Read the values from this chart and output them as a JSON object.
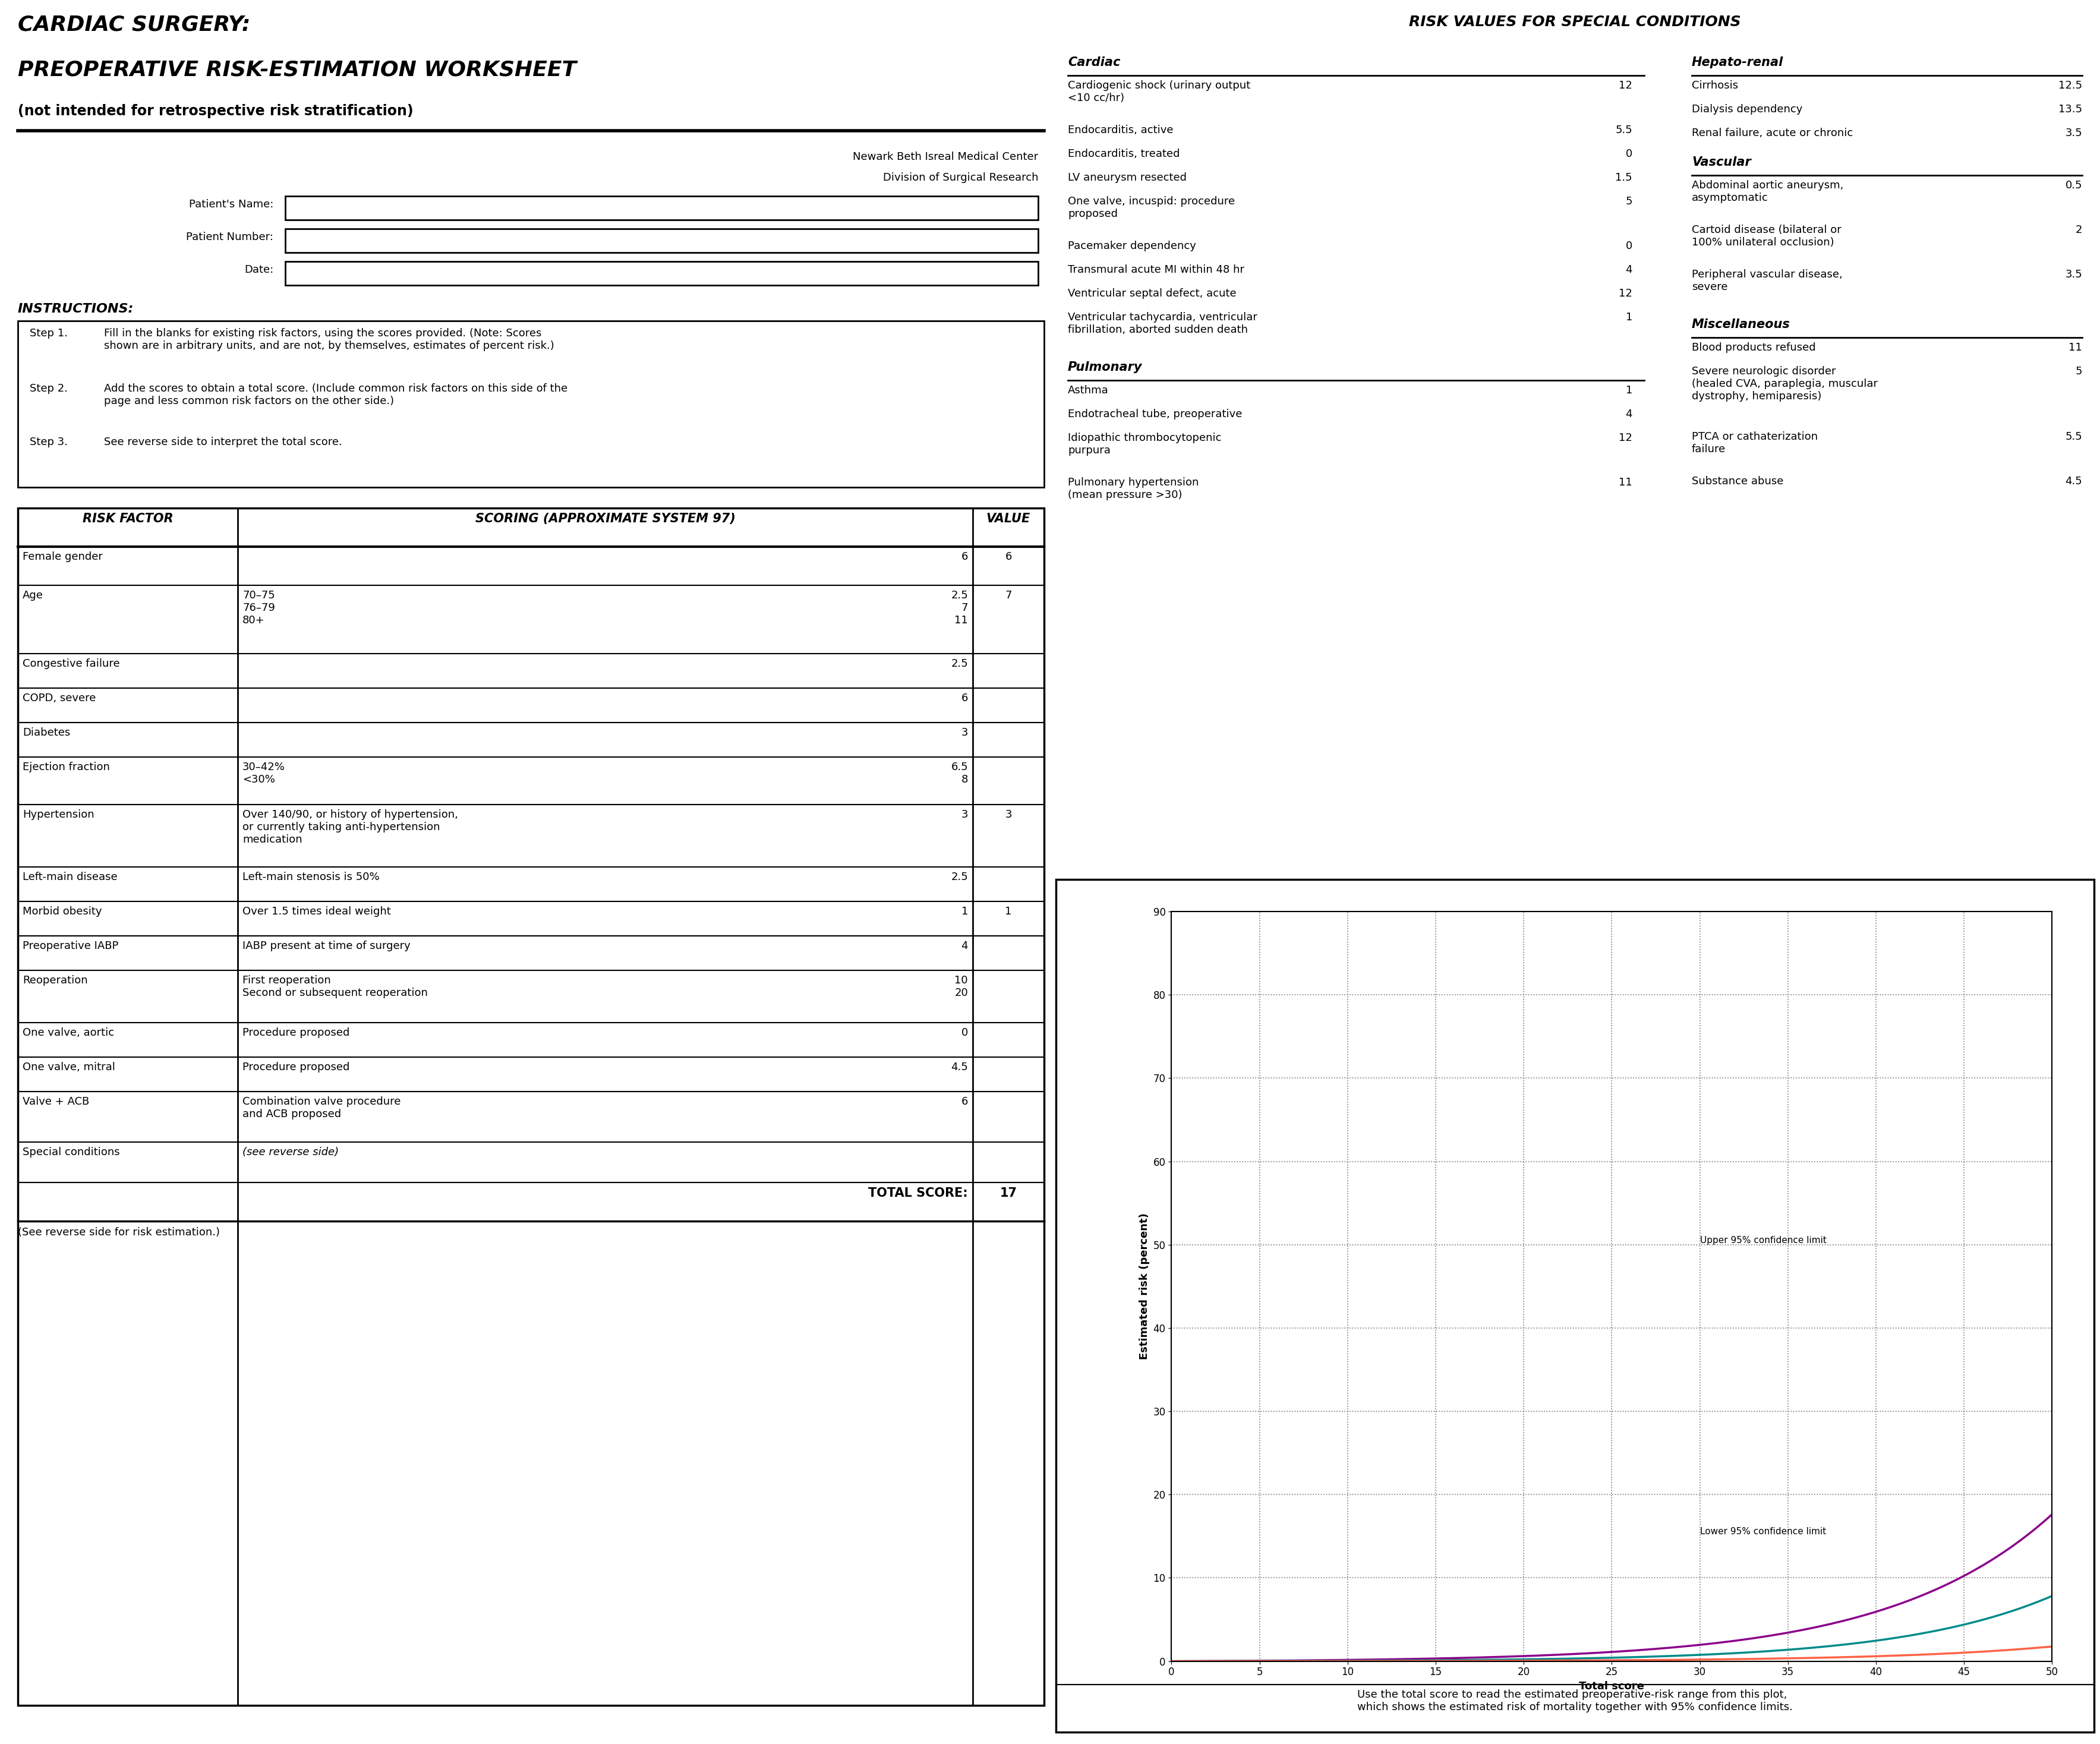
{
  "title_line1": "CARDIAC SURGERY:",
  "title_line2": "PREOPERATIVE RISK-ESTIMATION WORKSHEET",
  "title_line3": "(not intended for retrospective risk stratification)",
  "right_title": "RISK VALUES FOR SPECIAL CONDITIONS",
  "institution1": "Newark Beth Isreal Medical Center",
  "institution2": "Division of Surgical Research",
  "patient_labels": [
    "Patient's Name:",
    "Patient Number:",
    "Date:"
  ],
  "instructions_title": "INSTRUCTIONS:",
  "step1_label": "Step 1.",
  "step1_text": "Fill in the blanks for existing risk factors, using the scores provided. (Note: Scores\nshown are in arbitrary units, and are not, by themselves, estimates of percent risk.)",
  "step2_label": "Step 2.",
  "step2_text": "Add the scores to obtain a total score. (Include common risk factors on this side of the\npage and less common risk factors on the other side.)",
  "step3_label": "Step 3.",
  "step3_text": "See reverse side to interpret the total score.",
  "table_headers": [
    "RISK FACTOR",
    "SCORING (APPROXIMATE SYSTEM 97)",
    "VALUE"
  ],
  "table_rows": [
    {
      "factor": "Female gender",
      "scoring": "",
      "score_values": "6",
      "value": "6"
    },
    {
      "factor": "Age",
      "scoring": "70–75\n76–79\n80+",
      "score_values": "2.5\n7\n11",
      "value": "7"
    },
    {
      "factor": "Congestive failure",
      "scoring": "",
      "score_values": "2.5",
      "value": ""
    },
    {
      "factor": "COPD, severe",
      "scoring": "",
      "score_values": "6",
      "value": ""
    },
    {
      "factor": "Diabetes",
      "scoring": "",
      "score_values": "3",
      "value": ""
    },
    {
      "factor": "Ejection fraction",
      "scoring": "30–42%\n<30%",
      "score_values": "6.5\n8",
      "value": ""
    },
    {
      "factor": "Hypertension",
      "scoring": "Over 140/90, or history of hypertension,\nor currently taking anti-hypertension\nmedication",
      "score_values": "3",
      "value": "3"
    },
    {
      "factor": "Left-main disease",
      "scoring": "Left-main stenosis is 50%",
      "score_values": "2.5",
      "value": ""
    },
    {
      "factor": "Morbid obesity",
      "scoring": "Over 1.5 times ideal weight",
      "score_values": "1",
      "value": "1"
    },
    {
      "factor": "Preoperative IABP",
      "scoring": "IABP present at time of surgery",
      "score_values": "4",
      "value": ""
    },
    {
      "factor": "Reoperation",
      "scoring": "First reoperation\nSecond or subsequent reoperation",
      "score_values": "10\n20",
      "value": ""
    },
    {
      "factor": "One valve, aortic",
      "scoring": "Procedure proposed",
      "score_values": "0",
      "value": ""
    },
    {
      "factor": "One valve, mitral",
      "scoring": "Procedure proposed",
      "score_values": "4.5",
      "value": ""
    },
    {
      "factor": "Valve + ACB",
      "scoring": "Combination valve procedure\nand ACB proposed",
      "score_values": "6",
      "value": ""
    },
    {
      "factor": "Special conditions",
      "scoring": "(see reverse side)",
      "score_values": "",
      "value": ""
    }
  ],
  "total_score_label": "TOTAL SCORE:",
  "total_score_value": "17",
  "footer": "(See reverse side for risk estimation.)",
  "cardiac_header": "Cardiac",
  "cardiac_items": [
    {
      "label": "Cardiogenic shock (urinary output\n<10 cc/hr)",
      "value": "12"
    },
    {
      "label": "Endocarditis, active",
      "value": "5.5"
    },
    {
      "label": "Endocarditis, treated",
      "value": "0"
    },
    {
      "label": "LV aneurysm resected",
      "value": "1.5"
    },
    {
      "label": "One valve, incuspid: procedure\nproposed",
      "value": "5"
    },
    {
      "label": "Pacemaker dependency",
      "value": "0"
    },
    {
      "label": "Transmural acute MI within 48 hr",
      "value": "4"
    },
    {
      "label": "Ventricular septal defect, acute",
      "value": "12"
    },
    {
      "label": "Ventricular tachycardia, ventricular\nfibrillation, aborted sudden death",
      "value": "1"
    }
  ],
  "pulmonary_header": "Pulmonary",
  "pulmonary_items": [
    {
      "label": "Asthma",
      "value": "1"
    },
    {
      "label": "Endotracheal tube, preoperative",
      "value": "4"
    },
    {
      "label": "Idiopathic thrombocytopenic\npurpura",
      "value": "12"
    },
    {
      "label": "Pulmonary hypertension\n(mean pressure >30)",
      "value": "11"
    }
  ],
  "hepato_header": "Hepato-renal",
  "hepato_items": [
    {
      "label": "Cirrhosis",
      "value": "12.5"
    },
    {
      "label": "Dialysis dependency",
      "value": "13.5"
    },
    {
      "label": "Renal failure, acute or chronic",
      "value": "3.5"
    }
  ],
  "vascular_header": "Vascular",
  "vascular_items": [
    {
      "label": "Abdominal aortic aneurysm,\nasymptomatic",
      "value": "0.5"
    },
    {
      "label": "Cartoid disease (bilateral or\n100% unilateral occlusion)",
      "value": "2"
    },
    {
      "label": "Peripheral vascular disease,\nsevere",
      "value": "3.5"
    }
  ],
  "misc_header": "Miscellaneous",
  "misc_items": [
    {
      "label": "Blood products refused",
      "value": "11"
    },
    {
      "label": "Severe neurologic disorder\n(healed CVA, paraplegia, muscular\ndystrophy, hemiparesis)",
      "value": "5"
    },
    {
      "label": "PTCA or cathaterization\nfailure",
      "value": "5.5"
    },
    {
      "label": "Substance abuse",
      "value": "4.5"
    }
  ],
  "graph_xlabel": "Total score",
  "graph_ylabel": "Estimated risk (percent)",
  "graph_upper_label": "Upper 95% confidence limit",
  "graph_lower_label": "Lower 95% confidence limit",
  "graph_footer": "Use the total score to read the estimated preoperative-risk range from this plot,\nwhich shows the estimated risk of mortality together with 95% confidence limits.",
  "bg_color": "#ffffff",
  "text_color": "#000000",
  "line_color": "#000000",
  "graph_line_color_upper": "#8B008B",
  "graph_line_color_middle": "#008B8B",
  "graph_line_color_lower": "#FF6347"
}
